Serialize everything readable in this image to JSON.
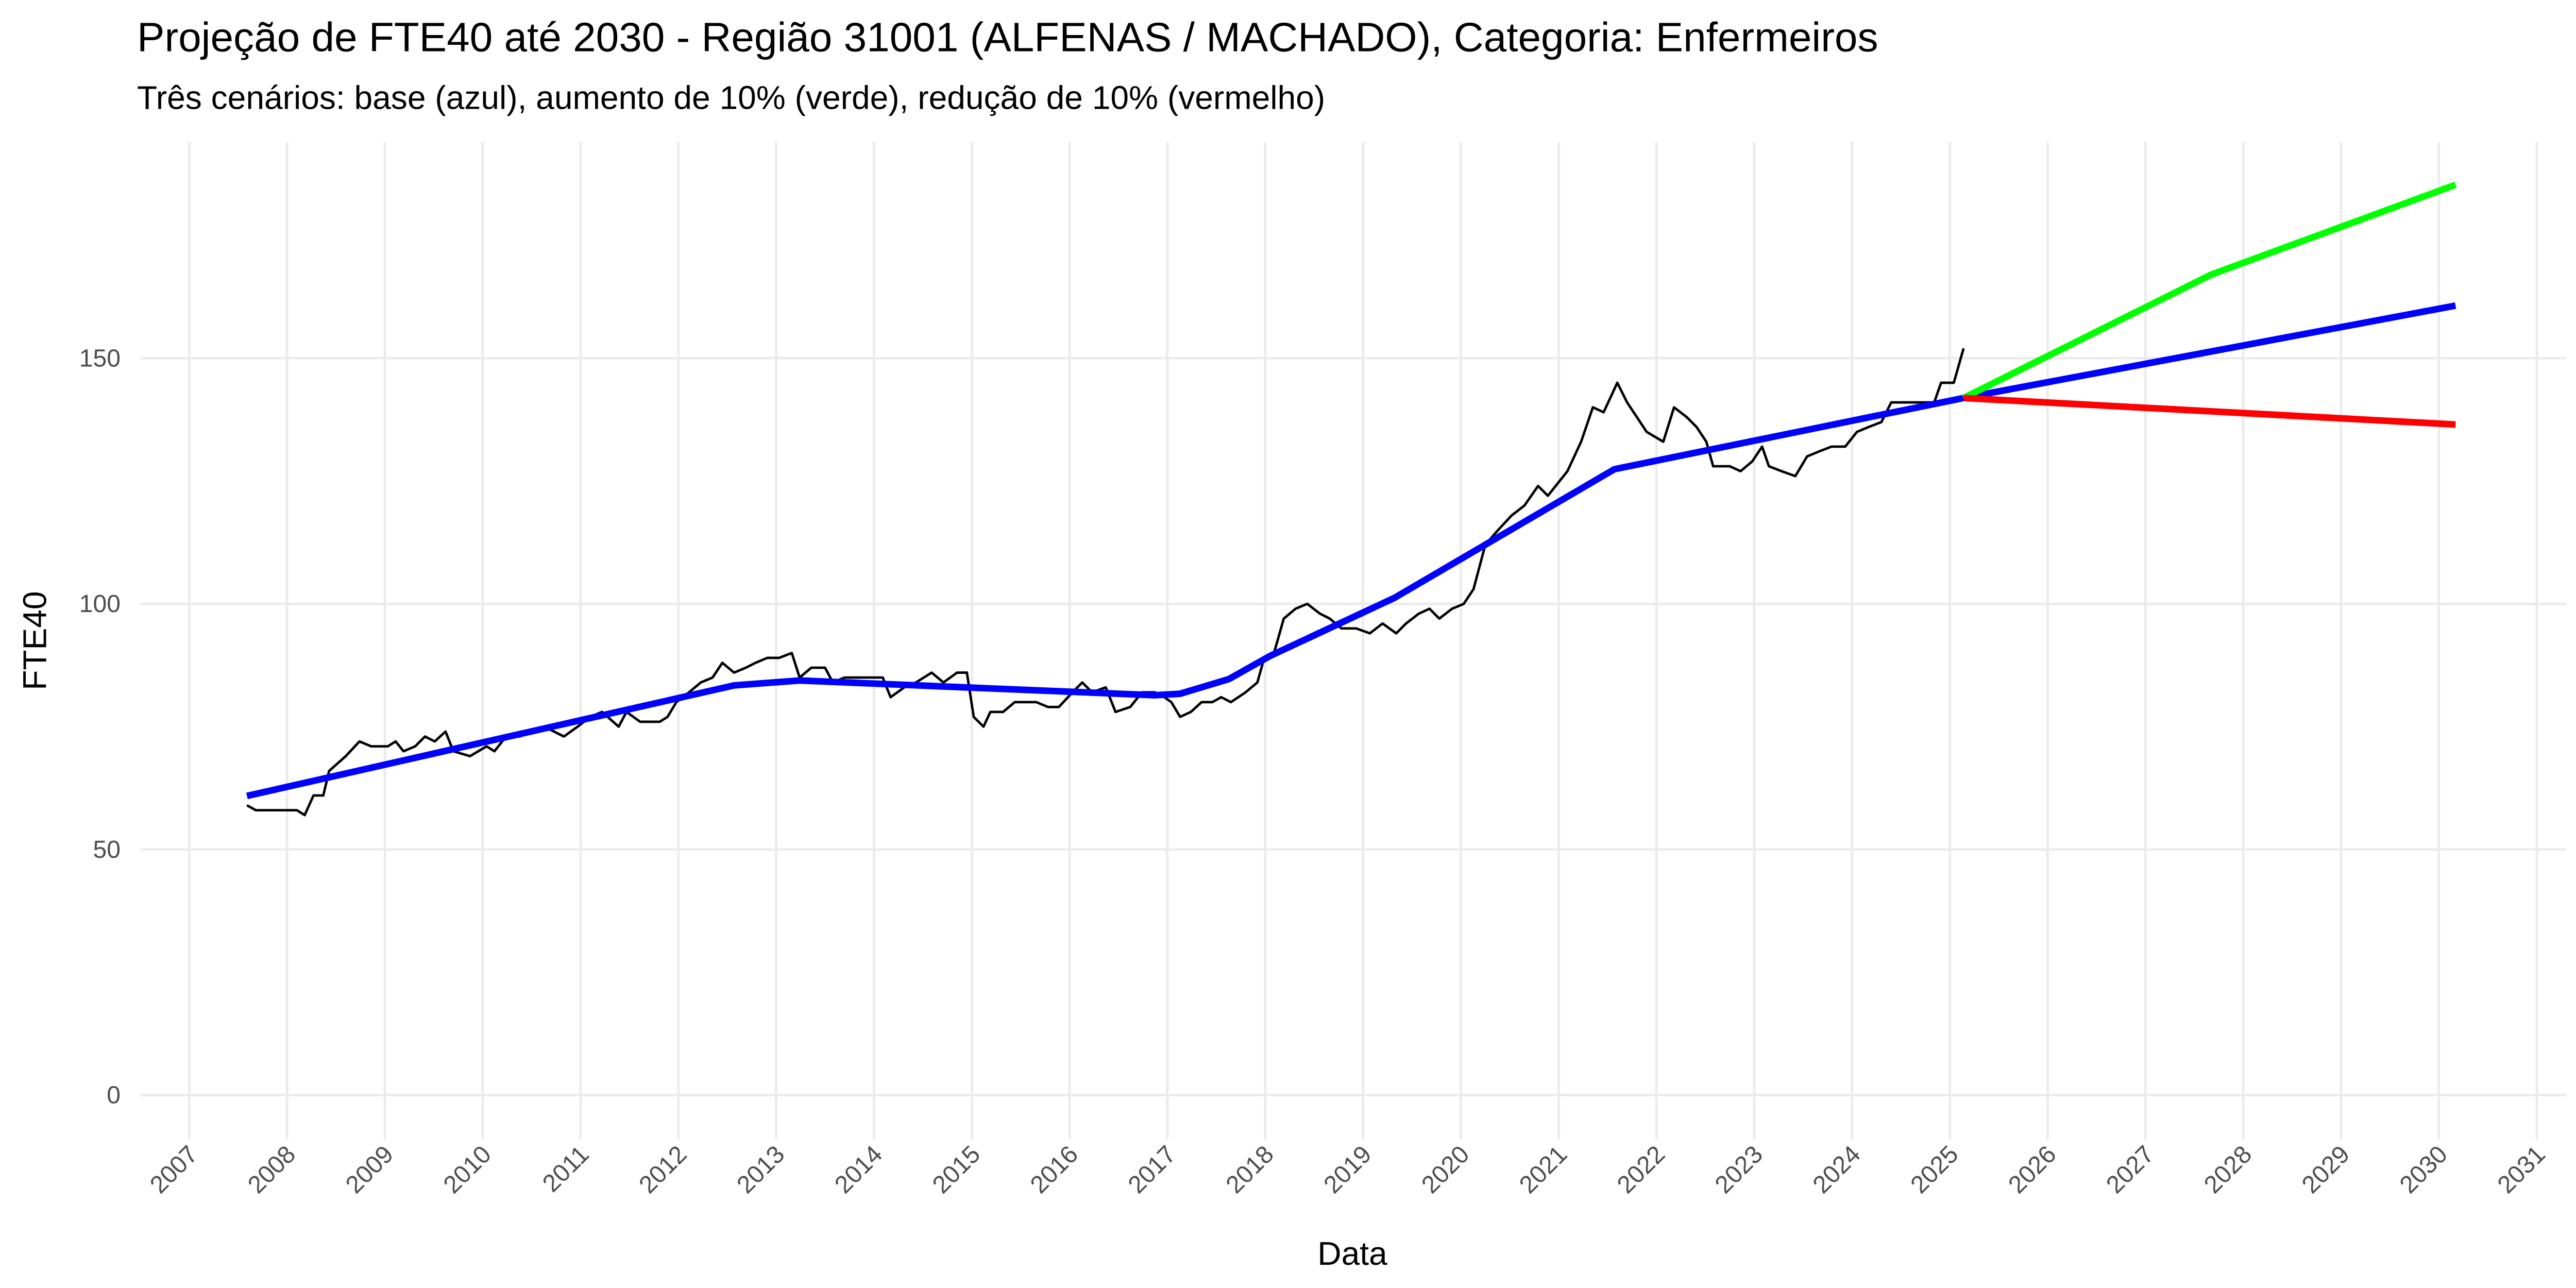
{
  "chart_data": {
    "type": "line",
    "title": "Projeção de FTE40 até 2030 - Região 31001 (ALFENAS / MACHADO), Categoria: Enfermeiros",
    "subtitle": "Três cenários: base (azul), aumento de 10% (verde), redução de 10% (vermelho)",
    "x_label": "Data",
    "y_label": "FTE40",
    "xlim": [
      2006.5,
      2031.3
    ],
    "xticks": [
      2007,
      2008,
      2009,
      2010,
      2011,
      2012,
      2013,
      2014,
      2015,
      2016,
      2017,
      2018,
      2019,
      2020,
      2021,
      2022,
      2023,
      2024,
      2025,
      2026,
      2027,
      2028,
      2029,
      2030,
      2031
    ],
    "ylim": [
      -9,
      194
    ],
    "yticks": [
      0,
      50,
      100,
      150
    ],
    "grid": true,
    "series": [
      {
        "color": "#000000",
        "width": 1.5,
        "x": [
          2007.59,
          2007.68,
          2008.1,
          2008.18,
          2008.27,
          2008.37,
          2008.43,
          2008.6,
          2008.74,
          2008.86,
          2009.03,
          2009.11,
          2009.19,
          2009.31,
          2009.41,
          2009.51,
          2009.62,
          2009.7,
          2009.87,
          2010.04,
          2010.12,
          2010.24,
          2010.38,
          2010.49,
          2010.63,
          2010.83,
          2010.97,
          2011.1,
          2011.22,
          2011.39,
          2011.47,
          2011.61,
          2011.81,
          2011.89,
          2011.98,
          2012.11,
          2012.23,
          2012.35,
          2012.45,
          2012.57,
          2012.69,
          2012.79,
          2012.91,
          2013.03,
          2013.16,
          2013.24,
          2013.36,
          2013.5,
          2013.58,
          2013.7,
          2013.84,
          2014.09,
          2014.17,
          2014.31,
          2014.43,
          2014.59,
          2014.71,
          2014.85,
          2014.95,
          2015.02,
          2015.12,
          2015.19,
          2015.32,
          2015.44,
          2015.66,
          2015.78,
          2015.89,
          2016.03,
          2016.13,
          2016.23,
          2016.37,
          2016.47,
          2016.62,
          2016.74,
          2016.87,
          2016.97,
          2017.04,
          2017.13,
          2017.24,
          2017.35,
          2017.46,
          2017.55,
          2017.65,
          2017.8,
          2017.92,
          2017.99,
          2018.09,
          2018.19,
          2018.31,
          2018.43,
          2018.56,
          2018.66,
          2018.78,
          2018.93,
          2019.07,
          2019.2,
          2019.34,
          2019.44,
          2019.57,
          2019.68,
          2019.78,
          2019.91,
          2020.03,
          2020.13,
          2020.25,
          2020.38,
          2020.52,
          2020.65,
          2020.79,
          2020.89,
          2021.01,
          2021.09,
          2021.23,
          2021.35,
          2021.46,
          2021.6,
          2021.7,
          2021.8,
          2021.9,
          2022.07,
          2022.18,
          2022.31,
          2022.41,
          2022.51,
          2022.58,
          2022.75,
          2022.86,
          2022.98,
          2023.08,
          2023.15,
          2023.28,
          2023.42,
          2023.54,
          2023.66,
          2023.79,
          2023.93,
          2024.05,
          2024.17,
          2024.3,
          2024.4,
          2024.5,
          2024.6,
          2024.72,
          2024.84,
          2024.91,
          2025.04,
          2025.14
        ],
        "values": [
          59,
          58,
          58,
          57,
          61,
          61,
          66,
          69,
          72,
          71,
          71,
          72,
          70,
          71,
          73,
          72,
          74,
          70,
          69,
          71,
          70,
          73,
          73,
          74,
          75,
          73,
          75,
          77,
          78,
          75,
          78,
          76,
          76,
          77,
          80,
          82,
          84,
          85,
          88,
          86,
          87,
          88,
          89,
          89,
          90,
          85,
          87,
          87,
          84,
          85,
          85,
          85,
          81,
          83,
          84,
          86,
          84,
          86,
          86,
          77,
          75,
          78,
          78,
          80,
          80,
          79,
          79,
          82,
          84,
          82,
          83,
          78,
          79,
          82,
          82,
          81,
          80,
          77,
          78,
          80,
          80,
          81,
          80,
          82,
          84,
          89,
          90,
          97,
          99,
          100,
          98,
          97,
          95,
          95,
          94,
          96,
          94,
          96,
          98,
          99,
          97,
          99,
          100,
          103,
          112,
          115,
          118,
          120,
          124,
          122,
          125,
          127,
          133,
          140,
          139,
          145,
          141,
          138,
          135,
          133,
          140,
          138,
          136,
          133,
          128,
          128,
          127,
          129,
          132,
          128,
          127,
          126,
          130,
          131,
          132,
          132,
          135,
          136,
          137,
          141,
          141,
          141,
          141,
          141,
          145,
          145,
          152
        ]
      },
      {
        "color": "#0000ff",
        "width": 4,
        "x": [
          2007.59,
          2012.57,
          2013.24,
          2016.87,
          2017.13,
          2017.63,
          2018.05,
          2019.32,
          2021.57,
          2025.14,
          2030.17
        ],
        "values": [
          60.9,
          83.4,
          84.4,
          81.4,
          81.7,
          84.7,
          89.4,
          101.2,
          127.4,
          141.9,
          160.7
        ]
      },
      {
        "color": "#00ff00",
        "width": 4,
        "x": [
          2025.14,
          2027.67,
          2030.17
        ],
        "values": [
          141.9,
          167,
          185.3
        ]
      },
      {
        "color": "#ff0000",
        "width": 4,
        "x": [
          2025.14,
          2030.17
        ],
        "values": [
          141.9,
          136.5
        ]
      }
    ]
  }
}
